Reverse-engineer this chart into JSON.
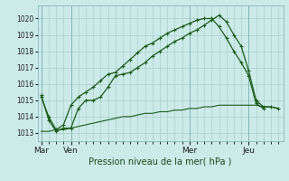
{
  "title": "Pression niveau de la mer( hPa )",
  "bg_color": "#cceae8",
  "grid_color": "#aacfcd",
  "line_color": "#1a5c1a",
  "ylim": [
    1012.5,
    1020.8
  ],
  "ylabel_ticks": [
    1013,
    1014,
    1015,
    1016,
    1017,
    1018,
    1019,
    1020
  ],
  "x_tick_labels": [
    "Mar",
    "Ven",
    "Mer",
    "Jeu"
  ],
  "x_tick_positions": [
    0,
    24,
    120,
    168
  ],
  "vline_positions": [
    0,
    24,
    120,
    168
  ],
  "series1": {
    "x": [
      0,
      6,
      12,
      18,
      24,
      30,
      36,
      42,
      48,
      54,
      60,
      66,
      72,
      78,
      84,
      90,
      96,
      102,
      108,
      114,
      120,
      126,
      132,
      138,
      144,
      150,
      156,
      162,
      168,
      174,
      180,
      186,
      192
    ],
    "y": [
      1015.3,
      1013.8,
      1013.1,
      1013.3,
      1013.3,
      1014.5,
      1015.0,
      1015.0,
      1015.2,
      1015.8,
      1016.5,
      1016.6,
      1016.7,
      1017.0,
      1017.3,
      1017.7,
      1018.0,
      1018.3,
      1018.6,
      1018.8,
      1019.1,
      1019.3,
      1019.6,
      1019.9,
      1020.2,
      1019.8,
      1019.0,
      1018.3,
      1016.8,
      1015.0,
      1014.6,
      1014.6,
      1014.5
    ]
  },
  "series2": {
    "x": [
      0,
      6,
      12,
      18,
      24,
      30,
      36,
      42,
      48,
      54,
      60,
      66,
      72,
      78,
      84,
      90,
      96,
      102,
      108,
      114,
      120,
      126,
      132,
      138,
      144,
      150,
      156,
      162,
      168,
      174,
      180
    ],
    "y": [
      1015.2,
      1014.0,
      1013.2,
      1013.5,
      1014.7,
      1015.2,
      1015.5,
      1015.8,
      1016.2,
      1016.6,
      1016.7,
      1017.1,
      1017.5,
      1017.9,
      1018.3,
      1018.5,
      1018.8,
      1019.1,
      1019.3,
      1019.5,
      1019.7,
      1019.9,
      1020.0,
      1020.0,
      1019.5,
      1018.8,
      1018.0,
      1017.3,
      1016.5,
      1014.8,
      1014.5
    ]
  },
  "series3": {
    "x": [
      0,
      6,
      12,
      18,
      24,
      30,
      36,
      42,
      48,
      54,
      60,
      66,
      72,
      78,
      84,
      90,
      96,
      102,
      108,
      114,
      120,
      126,
      132,
      138,
      144,
      150,
      156,
      162,
      168,
      174,
      180,
      186,
      192
    ],
    "y": [
      1013.1,
      1013.1,
      1013.2,
      1013.2,
      1013.3,
      1013.4,
      1013.5,
      1013.6,
      1013.7,
      1013.8,
      1013.9,
      1014.0,
      1014.0,
      1014.1,
      1014.2,
      1014.2,
      1014.3,
      1014.3,
      1014.4,
      1014.4,
      1014.5,
      1014.5,
      1014.6,
      1014.6,
      1014.7,
      1014.7,
      1014.7,
      1014.7,
      1014.7,
      1014.7,
      1014.6,
      1014.6,
      1014.5
    ]
  }
}
